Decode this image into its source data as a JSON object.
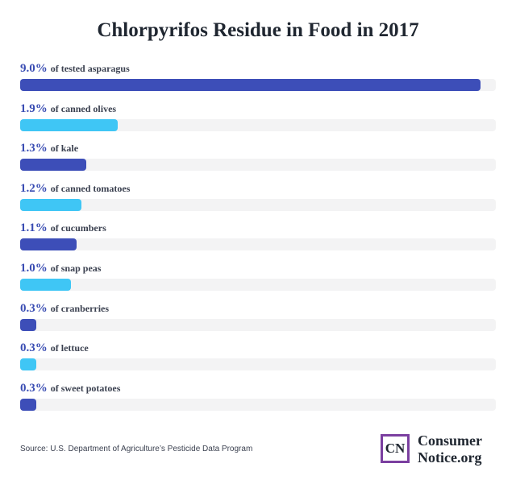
{
  "chart_data": {
    "type": "bar",
    "orientation": "horizontal",
    "title": "Chlorpyrifos Residue in Food in 2017",
    "categories": [
      "of tested asparagus",
      "of canned olives",
      "of kale",
      "of canned tomatoes",
      "of cucumbers",
      "of snap peas",
      "of cranberries",
      "of lettuce",
      "of sweet potatoes"
    ],
    "value_labels": [
      "9.0%",
      "1.9%",
      "1.3%",
      "1.2%",
      "1.1%",
      "1.0%",
      "0.3%",
      "0.3%",
      "0.3%"
    ],
    "values": [
      9.0,
      1.9,
      1.3,
      1.2,
      1.1,
      1.0,
      0.3,
      0.3,
      0.3
    ],
    "xlim": [
      0,
      9.3
    ],
    "unit": "%",
    "grid": false,
    "bar_colors": [
      "#3d4eb8",
      "#3fc6f5"
    ]
  },
  "source": "Source: U.S. Department of Agriculture’s Pesticide Data Program",
  "logo": {
    "mark": "CN",
    "line1": "Consumer",
    "line2": "Notice.org",
    "accent_color": "#7b3fa0"
  }
}
